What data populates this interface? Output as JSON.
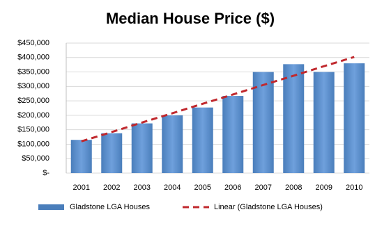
{
  "chart_data": {
    "type": "bar",
    "title": "Median House Price ($)",
    "categories": [
      "2001",
      "2002",
      "2003",
      "2004",
      "2005",
      "2006",
      "2007",
      "2008",
      "2009",
      "2010"
    ],
    "series": [
      {
        "name": "Gladstone LGA Houses",
        "type": "bar",
        "color": "#4a7ebb",
        "values": [
          115000,
          138000,
          172000,
          200000,
          227000,
          267000,
          350000,
          377000,
          350000,
          380000
        ]
      },
      {
        "name": "Linear (Gladstone LGA Houses)",
        "type": "line",
        "color": "#c0282d",
        "values": [
          110000,
          142000,
          175000,
          207000,
          240000,
          272000,
          305000,
          337000,
          370000,
          402000
        ]
      }
    ],
    "ylim": [
      0,
      450000
    ],
    "yticks": [
      {
        "value": 0,
        "label": "$-"
      },
      {
        "value": 50000,
        "label": "$50,000"
      },
      {
        "value": 100000,
        "label": "$100,000"
      },
      {
        "value": 150000,
        "label": "$150,000"
      },
      {
        "value": 200000,
        "label": "$200,000"
      },
      {
        "value": 250000,
        "label": "$250,000"
      },
      {
        "value": 300000,
        "label": "$300,000"
      },
      {
        "value": 350000,
        "label": "$350,000"
      },
      {
        "value": 400000,
        "label": "$400,000"
      },
      {
        "value": 450000,
        "label": "$450,000"
      }
    ],
    "grid": true,
    "legend": "bottom"
  }
}
